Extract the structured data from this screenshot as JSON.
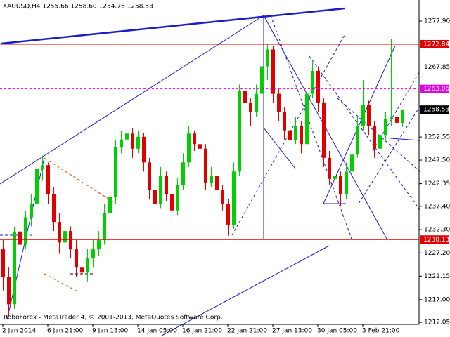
{
  "chart_data": {
    "type": "candlestick",
    "header": "XAUUSD,H4  1255.66 1258.60 1254.76 1258.53",
    "footer": "RoboForex - MetaTrader 4, © 2001-2013, MetaQuotes Software Corp.",
    "up_color": "#00d000",
    "down_color": "#e00000",
    "categories": [
      "2 Jan 2014",
      null,
      null,
      null,
      null,
      null,
      null,
      null,
      "6 Jan 21:00",
      null,
      null,
      null,
      null,
      null,
      null,
      null,
      "9 Jan 13:00",
      null,
      null,
      null,
      null,
      null,
      null,
      null,
      "14 Jan 05:00",
      null,
      null,
      null,
      null,
      null,
      null,
      null,
      "16 Jan 21:00",
      null,
      null,
      null,
      null,
      null,
      null,
      null,
      "22 Jan 21:00",
      null,
      null,
      null,
      null,
      null,
      null,
      null,
      "27 Jan 13:00",
      null,
      null,
      null,
      null,
      null,
      null,
      null,
      "30 Jan 05:00",
      null,
      null,
      null,
      null,
      null,
      null,
      null,
      "3 Feb 21:00",
      null,
      null,
      null,
      null,
      null,
      null,
      null
    ],
    "ohlc": [
      [
        1228,
        1230,
        1219,
        1222
      ],
      [
        1222,
        1224,
        1213.4,
        1216
      ],
      [
        1216,
        1233,
        1215,
        1231.9
      ],
      [
        1231.9,
        1234,
        1227,
        1229
      ],
      [
        1229,
        1236.5,
        1228,
        1235
      ],
      [
        1235,
        1240,
        1233,
        1238
      ],
      [
        1238,
        1247,
        1237,
        1245.6
      ],
      [
        1245.6,
        1248.5,
        1243,
        1246.4
      ],
      [
        1246.4,
        1247,
        1238,
        1240
      ],
      [
        1240,
        1241.5,
        1232,
        1234
      ],
      [
        1234,
        1236,
        1227,
        1229.5
      ],
      [
        1229.5,
        1234,
        1228,
        1232
      ],
      [
        1232,
        1233,
        1226,
        1228
      ],
      [
        1228,
        1230,
        1222,
        1224
      ],
      [
        1224,
        1226,
        1218.5,
        1222.9
      ],
      [
        1222.9,
        1228,
        1221,
        1226
      ],
      [
        1226,
        1230,
        1224,
        1228
      ],
      [
        1228,
        1232,
        1226.5,
        1230
      ],
      [
        1230,
        1238,
        1229,
        1236
      ],
      [
        1236,
        1241,
        1234,
        1239.5
      ],
      [
        1239.5,
        1252,
        1238,
        1250.3
      ],
      [
        1250.3,
        1254,
        1249,
        1252
      ],
      [
        1252,
        1255,
        1250.5,
        1253.3
      ],
      [
        1253.3,
        1254.5,
        1248,
        1250
      ],
      [
        1250,
        1254,
        1249,
        1252.6
      ],
      [
        1252.6,
        1253.5,
        1245,
        1247
      ],
      [
        1247,
        1248,
        1239,
        1241
      ],
      [
        1241,
        1243,
        1236,
        1238
      ],
      [
        1238,
        1246,
        1237,
        1244
      ],
      [
        1244,
        1245,
        1238.5,
        1240
      ],
      [
        1240,
        1241,
        1235,
        1236.5
      ],
      [
        1236.5,
        1243.5,
        1235.5,
        1242
      ],
      [
        1242,
        1249,
        1241,
        1247
      ],
      [
        1247,
        1255,
        1246,
        1253.3
      ],
      [
        1253.3,
        1254,
        1249.5,
        1251
      ],
      [
        1251,
        1253,
        1248,
        1250
      ],
      [
        1250,
        1251,
        1241,
        1242.6
      ],
      [
        1242.6,
        1246,
        1241.5,
        1244
      ],
      [
        1244,
        1245,
        1239.5,
        1241
      ],
      [
        1241,
        1242,
        1236.5,
        1238
      ],
      [
        1238,
        1239,
        1231,
        1233.4
      ],
      [
        1233.4,
        1247,
        1232.5,
        1245
      ],
      [
        1245,
        1264,
        1244,
        1262.6
      ],
      [
        1262.6,
        1264,
        1258,
        1260
      ],
      [
        1260,
        1261,
        1255,
        1258
      ],
      [
        1258,
        1264,
        1257,
        1262
      ],
      [
        1262,
        1278,
        1261,
        1268
      ],
      [
        1268,
        1273,
        1265,
        1271.7
      ],
      [
        1271.7,
        1272.5,
        1260,
        1262
      ],
      [
        1262,
        1263,
        1256,
        1258
      ],
      [
        1258,
        1259,
        1252,
        1254
      ],
      [
        1254,
        1255.5,
        1250,
        1251.8
      ],
      [
        1251.8,
        1257,
        1251,
        1255
      ],
      [
        1255,
        1256,
        1249,
        1251
      ],
      [
        1251,
        1264,
        1250,
        1262
      ],
      [
        1262,
        1269,
        1261,
        1267
      ],
      [
        1267,
        1268,
        1258,
        1260
      ],
      [
        1260,
        1261,
        1246,
        1248
      ],
      [
        1248,
        1249.5,
        1242,
        1243.4
      ],
      [
        1243.4,
        1246,
        1242,
        1244
      ],
      [
        1244,
        1245,
        1237.4,
        1240
      ],
      [
        1240,
        1247,
        1239,
        1245
      ],
      [
        1245,
        1250,
        1244,
        1248.7
      ],
      [
        1248.7,
        1257,
        1248,
        1255
      ],
      [
        1255,
        1265,
        1254,
        1259.5
      ],
      [
        1259.5,
        1260.5,
        1253,
        1255
      ],
      [
        1255,
        1256,
        1248,
        1250
      ],
      [
        1250,
        1254.5,
        1249,
        1253
      ],
      [
        1253,
        1258,
        1252,
        1256.5
      ],
      [
        1256.5,
        1274,
        1255,
        1257
      ],
      [
        1257,
        1259,
        1254,
        1255.66
      ],
      [
        1255.66,
        1258.6,
        1254.76,
        1258.53
      ]
    ],
    "ylim": [
      1211.6,
      1282.5
    ],
    "yticks": [
      {
        "value": 1277.9,
        "label": "1277.90"
      },
      1267.85,
      1252.55,
      {
        "value": 1247.5,
        "label": "1247.50"
      },
      1242.35,
      {
        "value": 1237.4,
        "label": "1237.40"
      },
      {
        "value": 1232.3,
        "label": "1232.30"
      },
      {
        "value": 1227.2,
        "label": "1227.20"
      },
      1222.15,
      {
        "value": 1217,
        "label": "1217.00"
      },
      1212.05
    ],
    "levels": [
      {
        "value": 1272.84,
        "color": "#e00000",
        "dashed": false
      },
      {
        "value": 1263.06,
        "color": "#e000e0",
        "dashed": true
      },
      {
        "value": 1230.13,
        "color": "#e00000",
        "dashed": false
      }
    ],
    "current_price": 1258.53
  }
}
